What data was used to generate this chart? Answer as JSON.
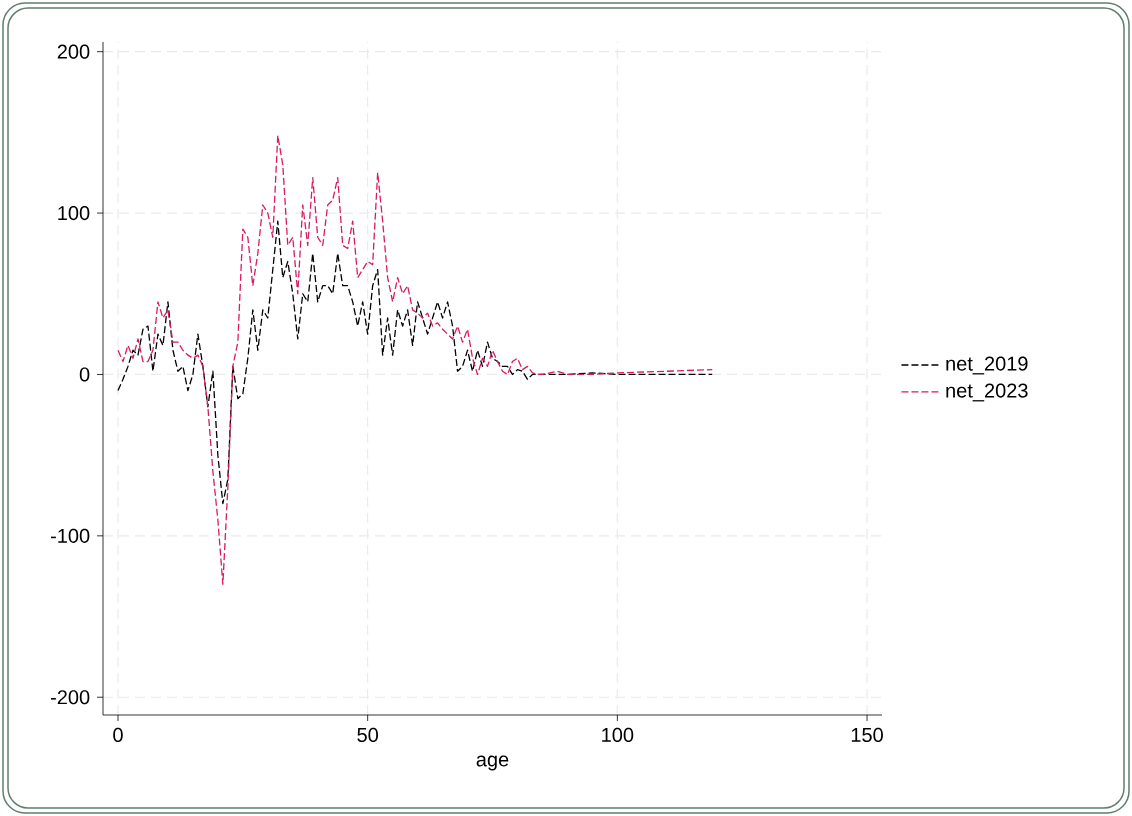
{
  "chart_data": {
    "type": "line",
    "xlabel": "age",
    "x": [
      0,
      1,
      2,
      3,
      4,
      5,
      6,
      7,
      8,
      9,
      10,
      11,
      12,
      13,
      14,
      15,
      16,
      17,
      18,
      19,
      20,
      21,
      22,
      23,
      24,
      25,
      26,
      27,
      28,
      29,
      30,
      31,
      32,
      33,
      34,
      35,
      36,
      37,
      38,
      39,
      40,
      41,
      42,
      43,
      44,
      45,
      46,
      47,
      48,
      49,
      50,
      51,
      52,
      53,
      54,
      55,
      56,
      57,
      58,
      59,
      60,
      61,
      62,
      63,
      64,
      65,
      66,
      67,
      68,
      69,
      70,
      71,
      72,
      73,
      74,
      75,
      76,
      77,
      78,
      79,
      80,
      81,
      82,
      83,
      84,
      85,
      88,
      90,
      95,
      100,
      110,
      119
    ],
    "series": [
      {
        "name": "net_2019",
        "color": "#000000",
        "values": [
          -10,
          -3,
          5,
          15,
          12,
          28,
          30,
          2,
          25,
          18,
          45,
          15,
          2,
          5,
          -10,
          0,
          25,
          5,
          -20,
          2,
          -50,
          -80,
          -65,
          5,
          -15,
          -12,
          10,
          40,
          15,
          40,
          35,
          65,
          95,
          60,
          70,
          50,
          22,
          50,
          45,
          75,
          45,
          55,
          55,
          50,
          75,
          55,
          55,
          45,
          30,
          45,
          25,
          55,
          65,
          12,
          35,
          12,
          40,
          30,
          40,
          18,
          45,
          35,
          25,
          35,
          45,
          35,
          45,
          30,
          2,
          5,
          15,
          2,
          15,
          5,
          20,
          10,
          8,
          5,
          5,
          0,
          3,
          2,
          -3,
          0,
          0,
          0,
          0,
          0,
          1,
          0,
          0,
          0
        ]
      },
      {
        "name": "net_2023",
        "color": "#d81b60",
        "values": [
          15,
          8,
          18,
          10,
          22,
          8,
          8,
          15,
          45,
          35,
          40,
          20,
          20,
          15,
          12,
          10,
          12,
          5,
          -20,
          -60,
          -90,
          -130,
          -70,
          5,
          20,
          90,
          85,
          55,
          75,
          105,
          100,
          85,
          148,
          130,
          80,
          85,
          50,
          105,
          80,
          122,
          85,
          80,
          105,
          108,
          122,
          80,
          78,
          95,
          60,
          65,
          70,
          68,
          125,
          95,
          60,
          45,
          60,
          50,
          55,
          40,
          38,
          35,
          38,
          30,
          32,
          28,
          25,
          22,
          30,
          20,
          28,
          10,
          0,
          10,
          5,
          15,
          8,
          2,
          0,
          8,
          10,
          3,
          5,
          1,
          0,
          0,
          2,
          0,
          0,
          1,
          2,
          3
        ]
      }
    ],
    "xlim": [
      -3,
      153
    ],
    "ylim": [
      -211,
      206
    ],
    "xticks": [
      0,
      50,
      100,
      150
    ],
    "yticks": [
      -200,
      -100,
      0,
      100,
      200
    ],
    "grid": true,
    "legend": "right",
    "line_style": "dashed"
  }
}
